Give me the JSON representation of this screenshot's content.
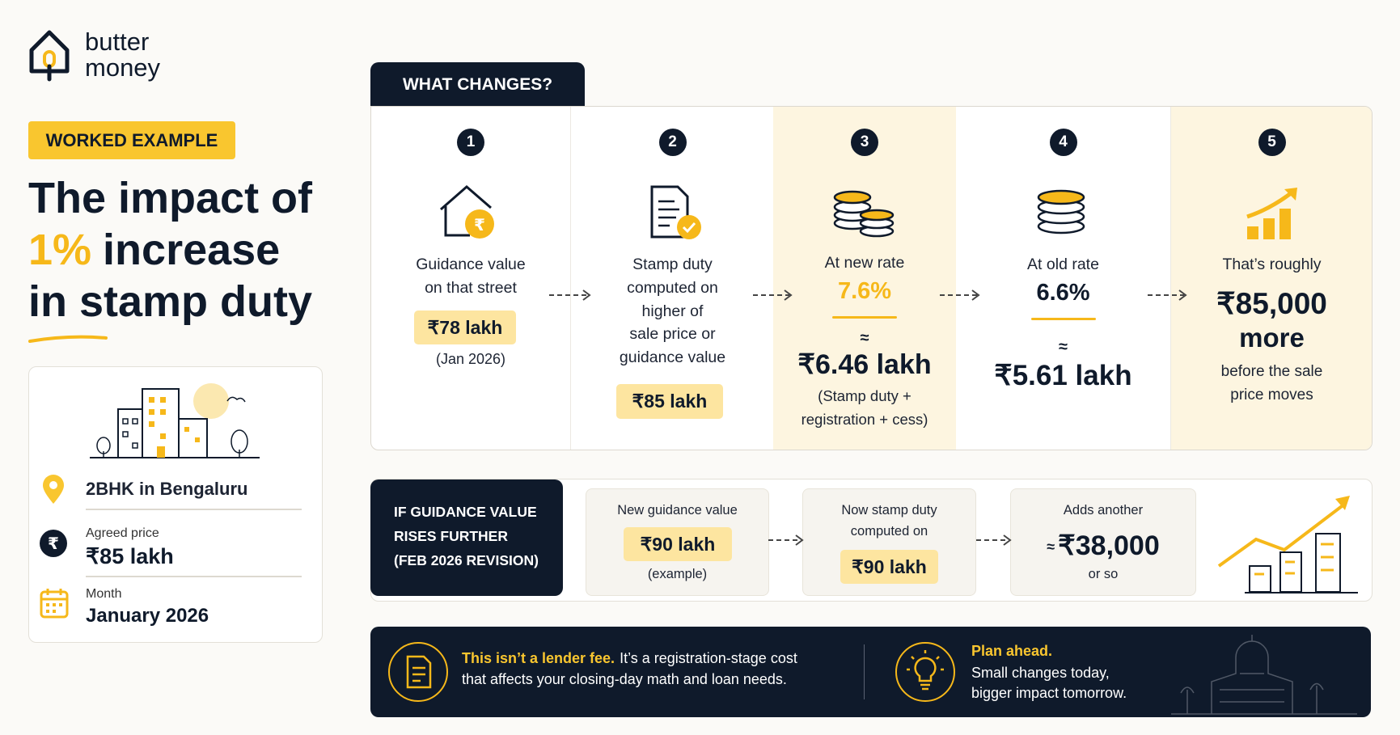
{
  "brand": {
    "line1": "butter",
    "line2": "money"
  },
  "header": {
    "tag": "WORKED EXAMPLE",
    "title_line1": "The impact of",
    "title_highlight": "1%",
    "title_line2_rest": "increase",
    "title_line3": "in stamp duty"
  },
  "example": {
    "property": "2BHK in Bengaluru",
    "price_label": "Agreed price",
    "price": "₹85 lakh",
    "month_label": "Month",
    "month": "January 2026"
  },
  "changes": {
    "title": "WHAT CHANGES?",
    "steps": [
      {
        "number": "1",
        "label": [
          "Guidance value",
          "on that street"
        ],
        "value": "₹78 lakh",
        "note": "(Jan 2026)"
      },
      {
        "number": "2",
        "label": [
          "Stamp duty",
          "computed on",
          "higher of",
          "sale price or",
          "guidance value"
        ],
        "value": "₹85 lakh"
      },
      {
        "number": "3",
        "label": [
          "At new rate"
        ],
        "rate": "7.6%",
        "approx": "≈",
        "value": "₹6.46 lakh",
        "note": [
          "(Stamp duty +",
          "registration + cess)"
        ]
      },
      {
        "number": "4",
        "label": [
          "At old rate"
        ],
        "rate": "6.6%",
        "approx": "≈",
        "value": "₹5.61 lakh"
      },
      {
        "number": "5",
        "label": [
          "That’s roughly"
        ],
        "value": [
          "₹85,000",
          "more"
        ],
        "note": [
          "before the sale",
          "price moves"
        ]
      }
    ]
  },
  "further": {
    "title": [
      "IF GUIDANCE VALUE",
      "RISES FURTHER",
      "(FEB 2026 REVISION)"
    ],
    "cards": [
      {
        "label": [
          "New guidance value"
        ],
        "value": "₹90 lakh",
        "note": "(example)"
      },
      {
        "label": [
          "Now stamp duty",
          "computed on"
        ],
        "value": "₹90 lakh"
      },
      {
        "label": [
          "Adds another"
        ],
        "approx": "≈",
        "value": "₹38,000",
        "note": "or so"
      }
    ]
  },
  "footer": {
    "emphasis": "This isn’t a lender fee.",
    "text_line1": "It’s a registration-stage cost",
    "text_line2": "that affects your closing-day math and loan needs.",
    "plan_title": "Plan ahead.",
    "plan_lines": [
      "Small changes today,",
      "bigger impact tomorrow."
    ]
  }
}
